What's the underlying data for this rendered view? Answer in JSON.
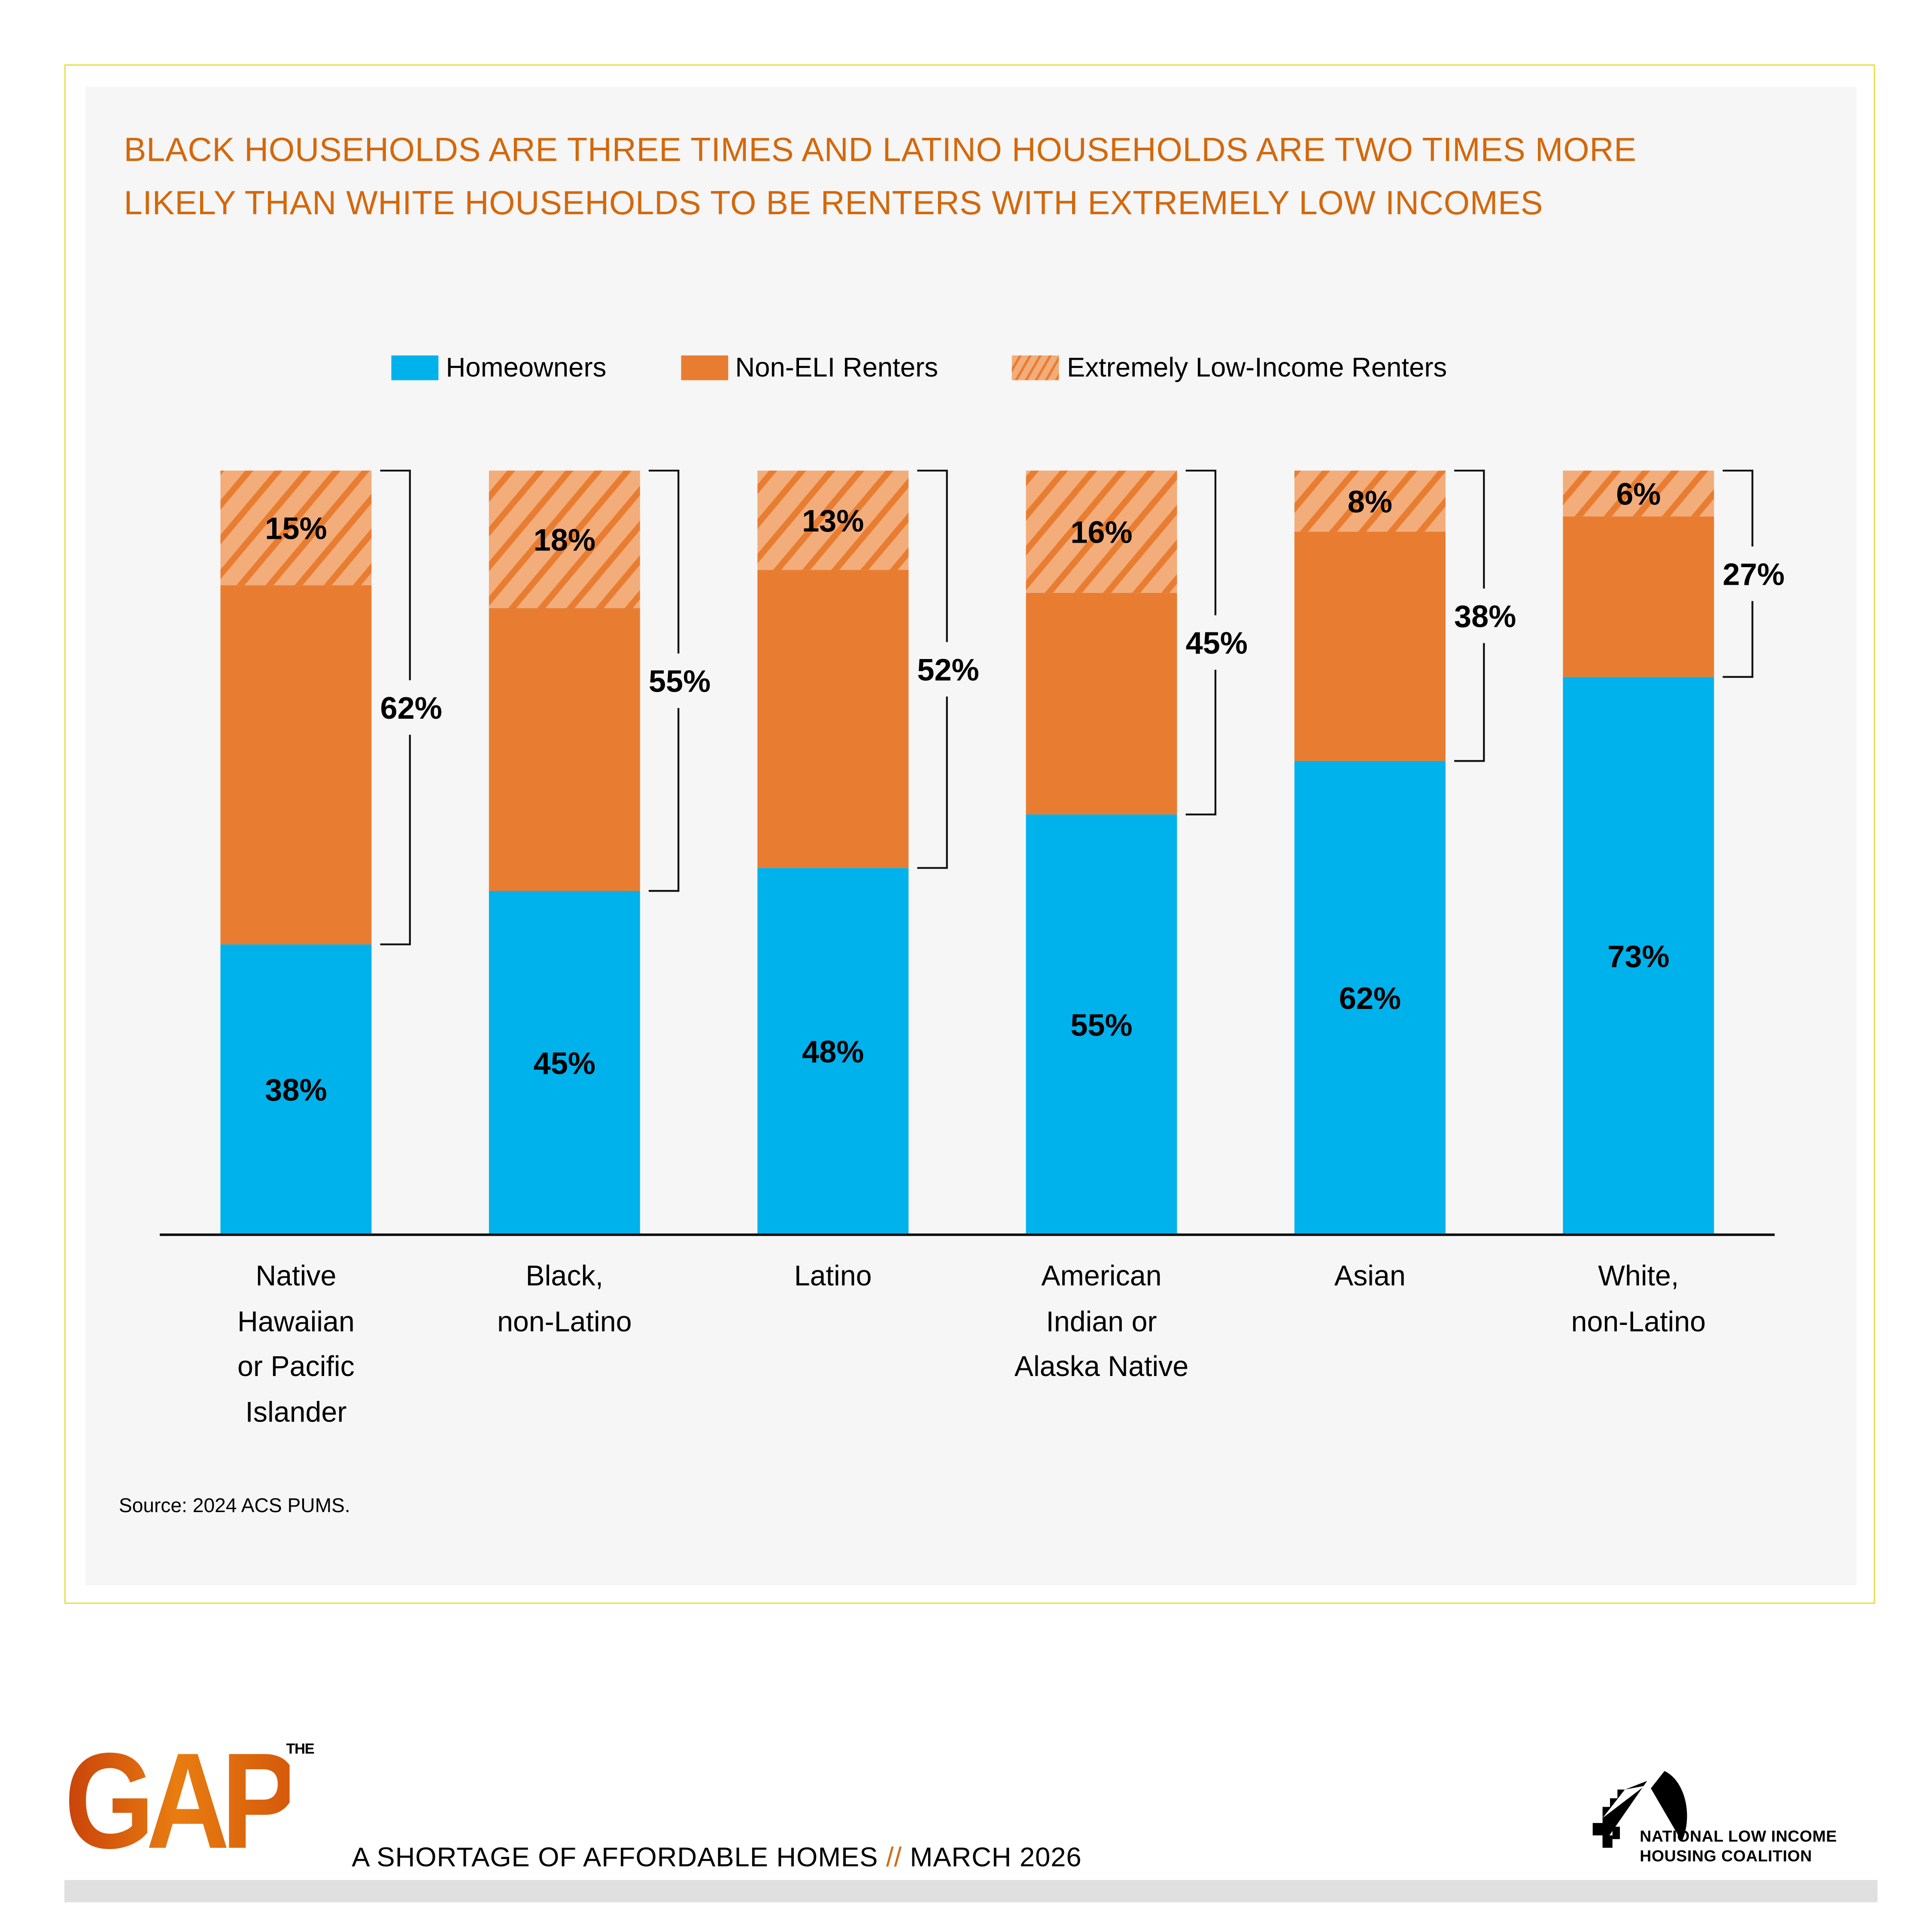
{
  "title": "BLACK HOUSEHOLDS ARE THREE TIMES AND LATINO HOUSEHOLDS ARE TWO TIMES MORE LIKELY THAN WHITE HOUSEHOLDS TO BE RENTERS WITH EXTREMELY LOW INCOMES",
  "title_lines": [
    "BLACK HOUSEHOLDS ARE THREE TIMES AND LATINO HOUSEHOLDS ARE TWO TIMES MORE",
    "LIKELY THAN WHITE HOUSEHOLDS TO BE RENTERS WITH EXTREMELY LOW INCOMES"
  ],
  "legend": [
    {
      "label": "Homeowners",
      "color": "#00b2ec"
    },
    {
      "label": "Non-ELI Renters",
      "color": "#e87d31"
    },
    {
      "label": "Extremely Low-Income Renters",
      "color": "#f2ad7b",
      "pattern": "hatched"
    }
  ],
  "source": "Source: 2024 ACS PUMS.",
  "footer": {
    "logo_the": "THE",
    "logo_gap": "GAP",
    "tagline_main": "A SHORTAGE OF AFFORDABLE HOMES",
    "tagline_sep": "//",
    "tagline_date": "MARCH 2026",
    "org_line1": "NATIONAL LOW INCOME",
    "org_line2": "HOUSING COALITION"
  },
  "colors": {
    "accent": "#d4680c",
    "homeowners": "#00b2ec",
    "non_eli": "#e87d31",
    "eli": "#f2ad7b",
    "frame": "#e8dc3c"
  },
  "chart_data": {
    "type": "bar",
    "stacked": true,
    "title": "BLACK HOUSEHOLDS ARE THREE TIMES AND LATINO HOUSEHOLDS ARE TWO TIMES MORE LIKELY THAN WHITE HOUSEHOLDS TO BE RENTERS WITH EXTREMELY LOW INCOMES",
    "xlabel": "",
    "ylabel": "",
    "ylim": [
      0,
      100
    ],
    "grid": false,
    "legend_position": "top-center",
    "categories": [
      [
        "Native",
        "Hawaiian",
        "or Pacific",
        "Islander"
      ],
      [
        "Black,",
        "non-Latino"
      ],
      [
        "Latino"
      ],
      [
        "American",
        "Indian or",
        "Alaska Native"
      ],
      [
        "Asian"
      ],
      [
        "White,",
        "non-Latino"
      ]
    ],
    "category_names": [
      "Native Hawaiian or Pacific Islander",
      "Black, non-Latino",
      "Latino",
      "American Indian or Alaska Native",
      "Asian",
      "White, non-Latino"
    ],
    "series": [
      {
        "name": "Homeowners",
        "values": [
          38,
          45,
          48,
          55,
          62,
          73
        ],
        "labels": [
          "38%",
          "45%",
          "48%",
          "55%",
          "62%",
          "73%"
        ]
      },
      {
        "name": "Non-ELI Renters",
        "values": [
          47,
          37,
          39,
          29,
          30,
          21
        ]
      },
      {
        "name": "Extremely Low-Income Renters",
        "values": [
          15,
          18,
          13,
          16,
          8,
          6
        ],
        "labels": [
          "15%",
          "18%",
          "13%",
          "16%",
          "8%",
          "6%"
        ]
      }
    ],
    "renter_totals": {
      "values": [
        62,
        55,
        52,
        45,
        38,
        27
      ],
      "labels": [
        "62%",
        "55%",
        "52%",
        "45%",
        "38%",
        "27%"
      ]
    }
  }
}
